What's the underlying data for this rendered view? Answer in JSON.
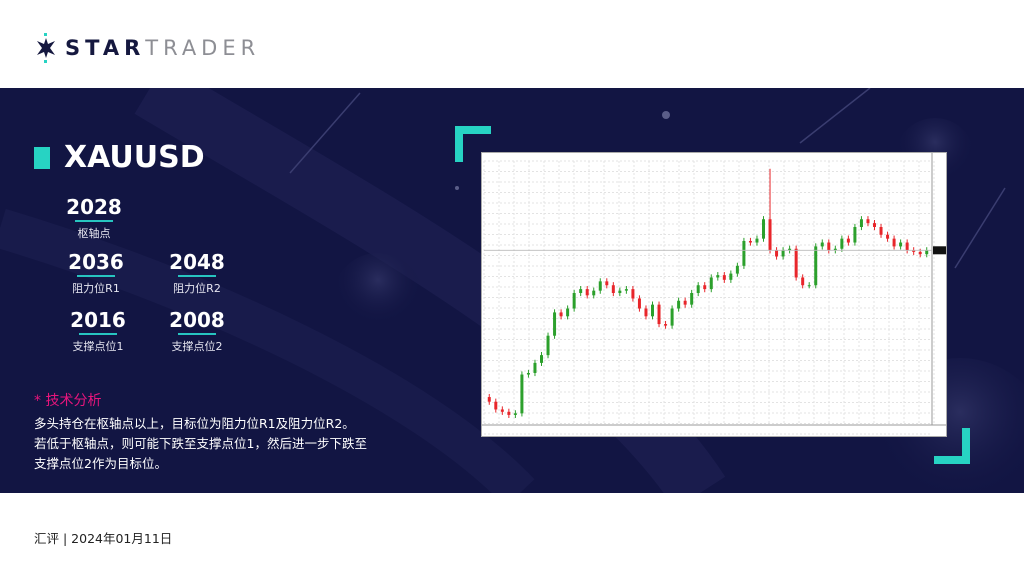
{
  "brand": {
    "name_bold": "STAR",
    "name_light": "TRADER",
    "accent": "#27d3c3",
    "dark": "#15183f"
  },
  "symbol": "XAUUSD",
  "levels": {
    "pivot": {
      "value": "2028",
      "label": "枢轴点"
    },
    "r1": {
      "value": "2036",
      "label": "阻力位R1"
    },
    "r2": {
      "value": "2048",
      "label": "阻力位R2"
    },
    "s1": {
      "value": "2016",
      "label": "支撑点位1"
    },
    "s2": {
      "value": "2008",
      "label": "支撑点位2"
    }
  },
  "analysis": {
    "heading": "* 技术分析",
    "lines": [
      "多头持仓在枢轴点以上，目标位为阻力位R1及阻力位R2。",
      "若低于枢轴点，则可能下跌至支撑点位1，然后进一步下跌至",
      "支撑点位2作为目标位。"
    ]
  },
  "footer": "汇评 | 2024年01月11日",
  "chart_data": {
    "type": "candlestick",
    "grid": true,
    "colors": {
      "up": "#2ca02c",
      "down": "#e8262b"
    },
    "closes": [
      1835,
      1825,
      1822,
      1818,
      1820,
      1870,
      1872,
      1885,
      1895,
      1920,
      1950,
      1945,
      1955,
      1975,
      1980,
      1972,
      1978,
      1990,
      1985,
      1975,
      1978,
      1980,
      1968,
      1955,
      1945,
      1960,
      1935,
      1933,
      1955,
      1965,
      1960,
      1975,
      1985,
      1980,
      1995,
      1998,
      1992,
      2000,
      2010,
      2042,
      2040,
      2045,
      2070,
      2030,
      2022,
      2030,
      2032,
      1995,
      1985,
      1985,
      2035,
      2040,
      2030,
      2032,
      2045,
      2040,
      2060,
      2070,
      2065,
      2060,
      2050,
      2045,
      2035,
      2040,
      2030,
      2028,
      2025,
      2030
    ],
    "spike_high": 2135,
    "ylim": [
      1805,
      2145
    ]
  }
}
